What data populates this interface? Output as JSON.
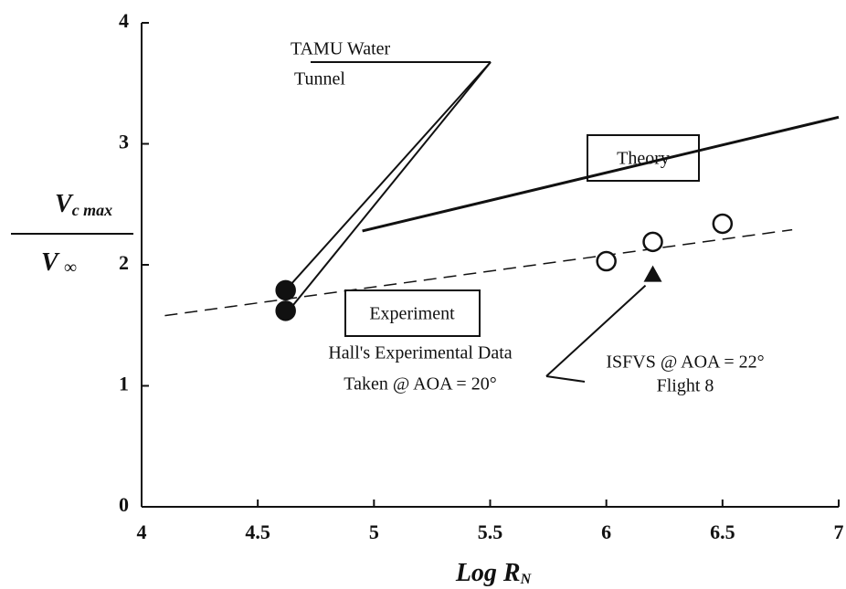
{
  "chart_data": {
    "type": "scatter",
    "x_label": {
      "main": "Log R",
      "sub": "N"
    },
    "y_label": {
      "numerator": {
        "main": "V",
        "sub": "c max"
      },
      "denominator": {
        "main": "V",
        "sub": "∞"
      }
    },
    "xlim": [
      4,
      7
    ],
    "xticks": [
      4,
      4.5,
      5,
      5.5,
      6,
      6.5,
      7
    ],
    "ylim": [
      0,
      4
    ],
    "yticks": [
      0,
      1,
      2,
      3,
      4
    ],
    "grid": false,
    "series": [
      {
        "label": [
          "TAMU Water",
          "Tunnel"
        ],
        "marker": "filled-circle",
        "color": "#111",
        "x": [
          4.62,
          4.62
        ],
        "values": [
          1.79,
          1.62
        ]
      },
      {
        "label": [
          "Hall's Experimental Data",
          "Taken @ AOA = 20°"
        ],
        "marker": "open-circle",
        "color": "#111",
        "x": [
          6.0,
          6.2,
          6.5
        ],
        "values": [
          2.03,
          2.19,
          2.34
        ]
      },
      {
        "label": [
          "ISFVS @ AOA = 22°",
          "Flight  8"
        ],
        "marker": "filled-triangle",
        "color": "#111",
        "x": [
          6.2
        ],
        "values": [
          1.92
        ]
      }
    ],
    "lines": [
      {
        "label": "Theory",
        "style": "solid",
        "color": "#111",
        "x": [
          4.95,
          7
        ],
        "values": [
          2.28,
          3.22
        ]
      },
      {
        "label": "Experiment",
        "style": "dashed",
        "color": "#111",
        "x": [
          4.1,
          6.8
        ],
        "values": [
          1.58,
          2.29
        ]
      }
    ]
  }
}
